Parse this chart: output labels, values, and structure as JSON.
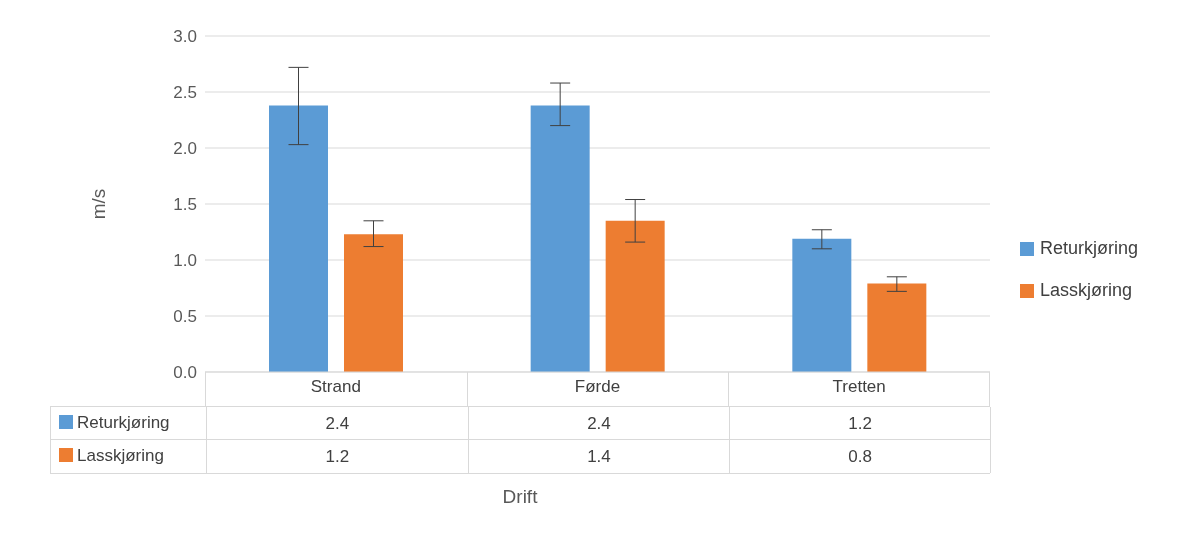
{
  "chart_data": {
    "type": "bar",
    "xlabel": "Drift",
    "ylabel": "m/s",
    "categories": [
      "Strand",
      "Førde",
      "Tretten"
    ],
    "series": [
      {
        "name": "Returkjøring",
        "color": "#5b9bd5",
        "values": [
          2.38,
          2.38,
          1.19
        ],
        "errors": [
          [
            2.03,
            2.72
          ],
          [
            2.2,
            2.58
          ],
          [
            1.1,
            1.27
          ]
        ],
        "value_labels": [
          "2.4",
          "2.4",
          "1.2"
        ]
      },
      {
        "name": "Lasskjøring",
        "color": "#ed7d31",
        "values": [
          1.23,
          1.35,
          0.79
        ],
        "errors": [
          [
            1.12,
            1.35
          ],
          [
            1.16,
            1.54
          ],
          [
            0.72,
            0.85
          ]
        ],
        "value_labels": [
          "1.2",
          "1.4",
          "0.8"
        ]
      }
    ],
    "ylim": [
      0,
      3
    ],
    "yticks": [
      {
        "value": 0,
        "label": "0.0"
      },
      {
        "value": 0.5,
        "label": "0.5"
      },
      {
        "value": 1,
        "label": "1.0"
      },
      {
        "value": 1.5,
        "label": "1.5"
      },
      {
        "value": 2,
        "label": "2.0"
      },
      {
        "value": 2.5,
        "label": "2.5"
      },
      {
        "value": 3,
        "label": "3.0"
      }
    ],
    "grid": "y",
    "legend": "right"
  }
}
